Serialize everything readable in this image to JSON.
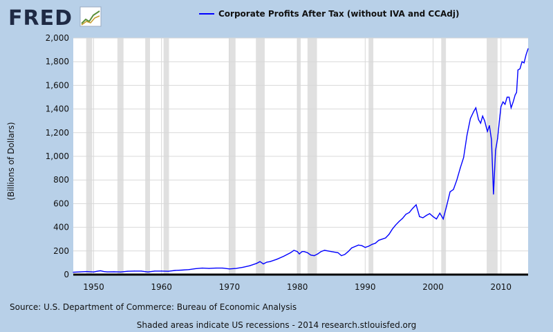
{
  "brand": {
    "logo_text": "FRED",
    "logo_color": "#1f2a44"
  },
  "legend": {
    "label": "Corporate Profits After Tax (without IVA and CCAdj)",
    "color": "#0000ff"
  },
  "footer": {
    "source": "Source: U.S. Department of Commerce: Bureau of Economic Analysis",
    "note": "Shaded areas indicate US recessions - 2014 research.stlouisfed.org"
  },
  "chart_data": {
    "type": "line",
    "title": "",
    "xlabel": "",
    "ylabel": "(Billions of Dollars)",
    "xlim": [
      1947,
      2014
    ],
    "ylim": [
      0,
      2000
    ],
    "x_ticks": [
      "1950",
      "1960",
      "1970",
      "1980",
      "1990",
      "2000",
      "2010"
    ],
    "y_ticks": [
      "0",
      "200",
      "400",
      "600",
      "800",
      "1,000",
      "1,200",
      "1,400",
      "1,600",
      "1,800",
      "2,000"
    ],
    "grid": true,
    "legend_position": "top",
    "recessions": [
      [
        1948.9,
        1949.8
      ],
      [
        1953.5,
        1954.4
      ],
      [
        1957.6,
        1958.3
      ],
      [
        1960.3,
        1961.1
      ],
      [
        1969.9,
        1970.9
      ],
      [
        1973.9,
        1975.2
      ],
      [
        1980.0,
        1980.5
      ],
      [
        1981.5,
        1982.9
      ],
      [
        1990.5,
        1991.2
      ],
      [
        2001.2,
        2001.9
      ],
      [
        2007.9,
        2009.5
      ]
    ],
    "series": [
      {
        "name": "Corporate Profits After Tax (without IVA and CCAdj)",
        "color": "#0000ff",
        "points": [
          [
            1947.0,
            20
          ],
          [
            1948.0,
            23
          ],
          [
            1949.0,
            26
          ],
          [
            1950.0,
            22
          ],
          [
            1950.5,
            28
          ],
          [
            1951.0,
            32
          ],
          [
            1951.5,
            26
          ],
          [
            1952.0,
            23
          ],
          [
            1953.0,
            24
          ],
          [
            1954.0,
            22
          ],
          [
            1955.0,
            28
          ],
          [
            1956.0,
            30
          ],
          [
            1957.0,
            30
          ],
          [
            1958.0,
            22
          ],
          [
            1959.0,
            30
          ],
          [
            1960.0,
            30
          ],
          [
            1961.0,
            28
          ],
          [
            1962.0,
            35
          ],
          [
            1963.0,
            38
          ],
          [
            1964.0,
            42
          ],
          [
            1965.0,
            50
          ],
          [
            1966.0,
            55
          ],
          [
            1967.0,
            52
          ],
          [
            1968.0,
            55
          ],
          [
            1969.0,
            55
          ],
          [
            1970.0,
            48
          ],
          [
            1971.0,
            52
          ],
          [
            1972.0,
            62
          ],
          [
            1973.0,
            75
          ],
          [
            1974.0,
            95
          ],
          [
            1974.5,
            110
          ],
          [
            1975.0,
            90
          ],
          [
            1975.5,
            105
          ],
          [
            1976.0,
            110
          ],
          [
            1977.0,
            130
          ],
          [
            1978.0,
            155
          ],
          [
            1979.0,
            185
          ],
          [
            1979.5,
            205
          ],
          [
            1980.0,
            195
          ],
          [
            1980.3,
            175
          ],
          [
            1980.7,
            195
          ],
          [
            1981.0,
            195
          ],
          [
            1981.5,
            185
          ],
          [
            1982.0,
            165
          ],
          [
            1982.5,
            160
          ],
          [
            1983.0,
            175
          ],
          [
            1983.5,
            195
          ],
          [
            1984.0,
            205
          ],
          [
            1985.0,
            195
          ],
          [
            1986.0,
            185
          ],
          [
            1986.5,
            160
          ],
          [
            1987.0,
            170
          ],
          [
            1987.5,
            195
          ],
          [
            1988.0,
            225
          ],
          [
            1989.0,
            250
          ],
          [
            1989.5,
            245
          ],
          [
            1990.0,
            230
          ],
          [
            1990.5,
            240
          ],
          [
            1991.0,
            255
          ],
          [
            1991.5,
            265
          ],
          [
            1992.0,
            290
          ],
          [
            1992.5,
            300
          ],
          [
            1993.0,
            310
          ],
          [
            1993.5,
            340
          ],
          [
            1994.0,
            385
          ],
          [
            1994.5,
            420
          ],
          [
            1995.0,
            450
          ],
          [
            1995.5,
            475
          ],
          [
            1996.0,
            510
          ],
          [
            1996.5,
            525
          ],
          [
            1997.0,
            560
          ],
          [
            1997.5,
            590
          ],
          [
            1998.0,
            490
          ],
          [
            1998.5,
            480
          ],
          [
            1999.0,
            500
          ],
          [
            1999.5,
            515
          ],
          [
            2000.0,
            490
          ],
          [
            2000.5,
            470
          ],
          [
            2001.0,
            520
          ],
          [
            2001.5,
            470
          ],
          [
            2002.0,
            580
          ],
          [
            2002.5,
            700
          ],
          [
            2003.0,
            720
          ],
          [
            2003.5,
            800
          ],
          [
            2004.0,
            900
          ],
          [
            2004.5,
            990
          ],
          [
            2005.0,
            1180
          ],
          [
            2005.5,
            1320
          ],
          [
            2006.0,
            1380
          ],
          [
            2006.3,
            1410
          ],
          [
            2006.7,
            1310
          ],
          [
            2007.0,
            1280
          ],
          [
            2007.3,
            1340
          ],
          [
            2007.6,
            1300
          ],
          [
            2008.0,
            1210
          ],
          [
            2008.3,
            1260
          ],
          [
            2008.6,
            1140
          ],
          [
            2008.9,
            680
          ],
          [
            2009.2,
            1050
          ],
          [
            2009.5,
            1150
          ],
          [
            2009.8,
            1320
          ],
          [
            2010.0,
            1420
          ],
          [
            2010.3,
            1460
          ],
          [
            2010.6,
            1440
          ],
          [
            2010.9,
            1500
          ],
          [
            2011.2,
            1500
          ],
          [
            2011.5,
            1410
          ],
          [
            2011.8,
            1460
          ],
          [
            2012.1,
            1520
          ],
          [
            2012.3,
            1540
          ],
          [
            2012.5,
            1730
          ],
          [
            2012.8,
            1740
          ],
          [
            2013.1,
            1800
          ],
          [
            2013.4,
            1790
          ],
          [
            2013.7,
            1860
          ],
          [
            2014.0,
            1910
          ]
        ]
      }
    ]
  }
}
